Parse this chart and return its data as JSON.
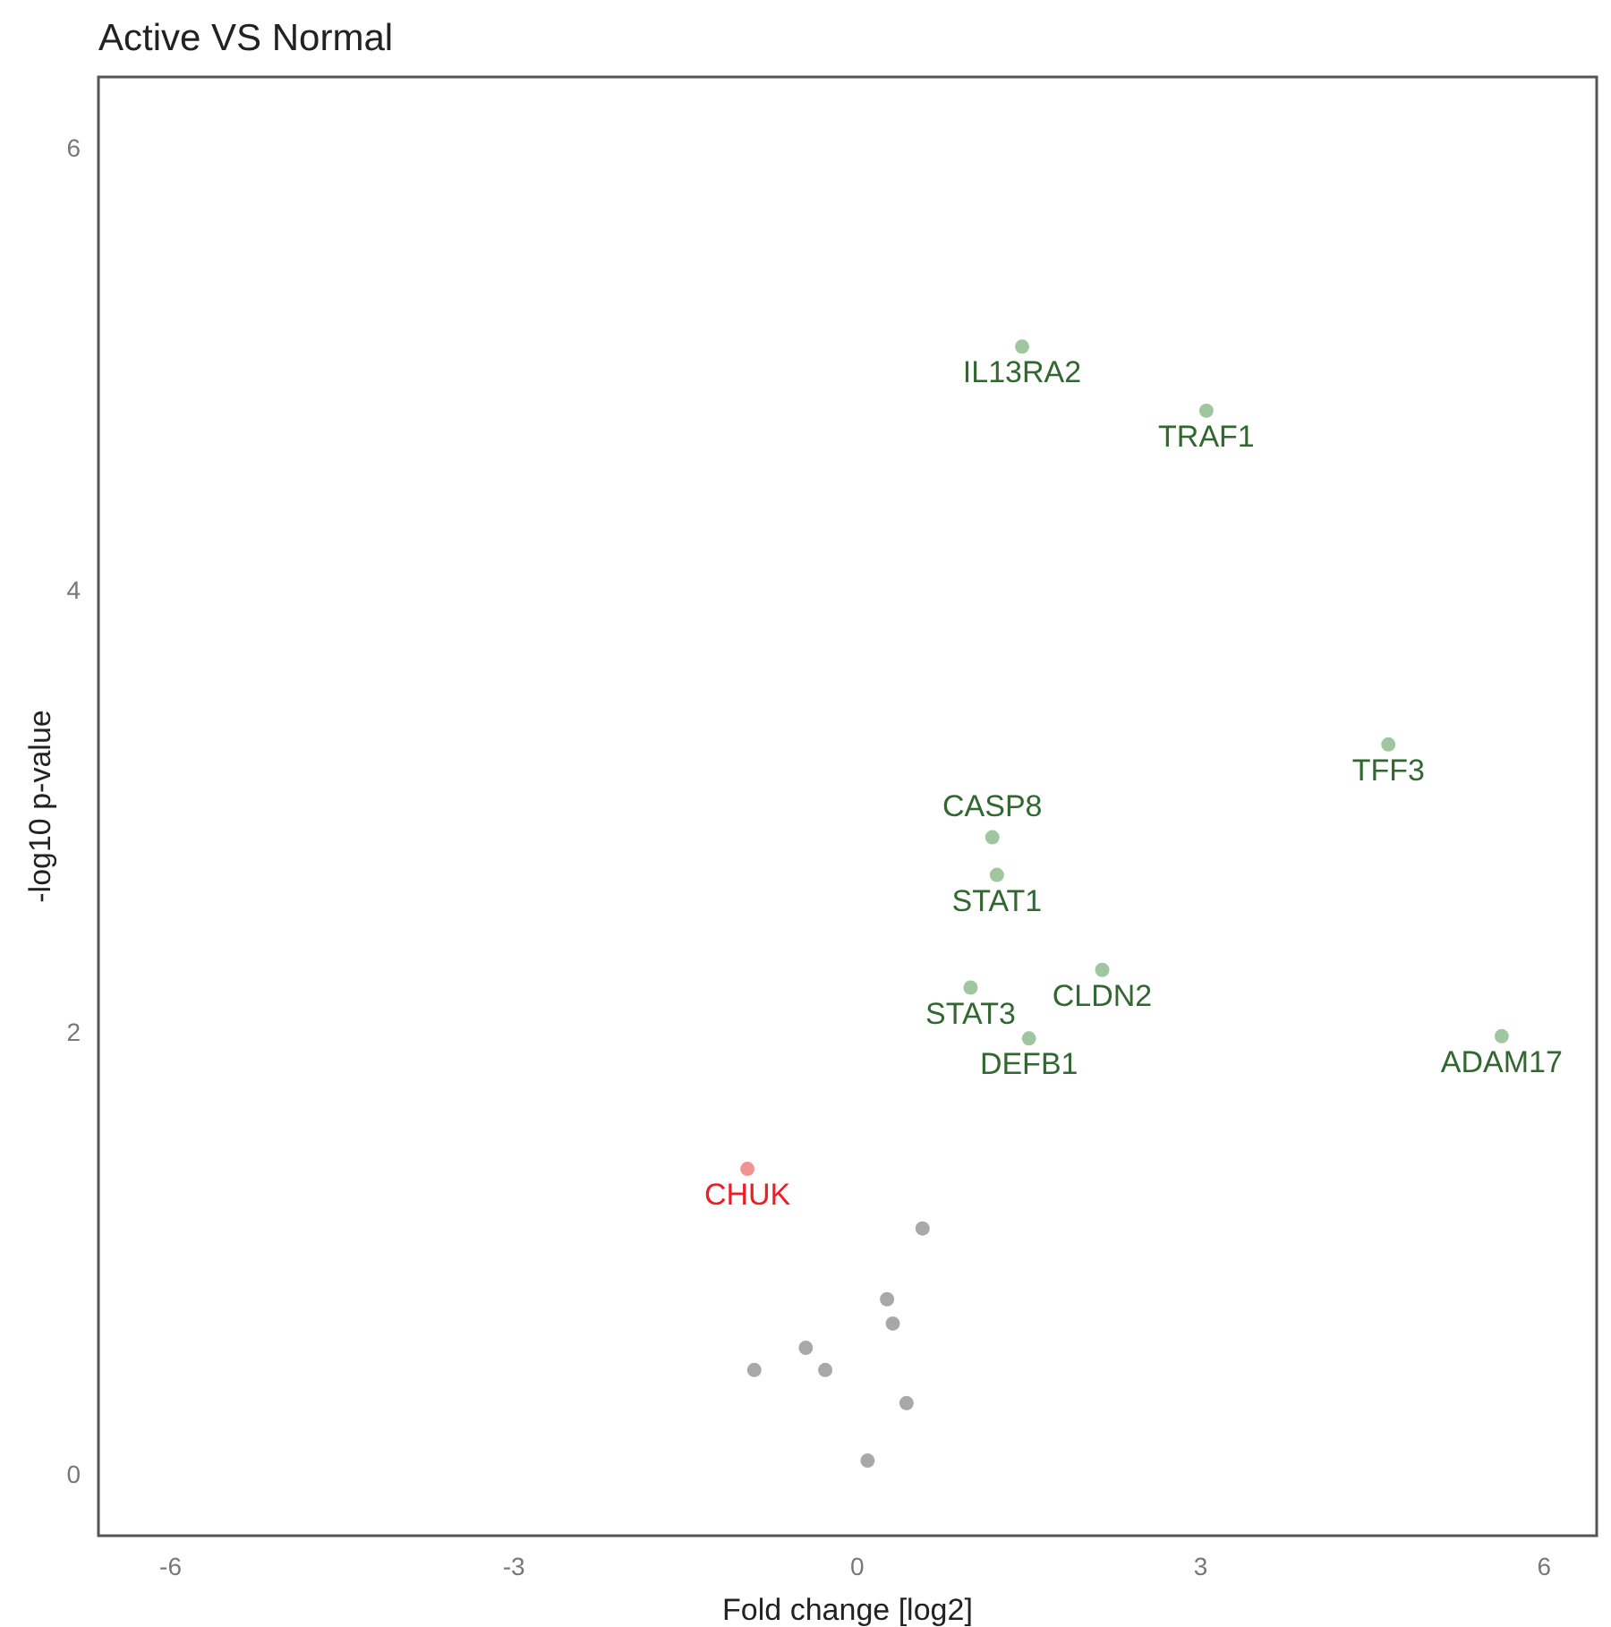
{
  "chart_data": {
    "type": "scatter",
    "title": "Active VS Normal",
    "xlabel": "Fold change [log2]",
    "ylabel": "-log10 p-value",
    "xlim": [
      -6.63,
      6.46
    ],
    "ylim": [
      -0.28,
      6.32
    ],
    "xticks": [
      -6,
      -3,
      0,
      3,
      6
    ],
    "yticks": [
      0,
      2,
      4,
      6
    ],
    "grid": false,
    "marker": "circle",
    "series": [
      {
        "color": "#8fbc8f",
        "x": [
          1.44,
          3.05,
          4.64,
          1.18,
          1.22,
          2.14,
          0.99,
          1.5,
          5.63
        ],
        "values": [
          5.1,
          4.81,
          3.3,
          2.88,
          2.71,
          2.28,
          2.2,
          1.97,
          1.98
        ]
      },
      {
        "color": "#f08080",
        "x": [
          -0.96
        ],
        "values": [
          1.38
        ]
      },
      {
        "color": "#999999",
        "x": [
          0.57,
          0.26,
          0.31,
          -0.45,
          -0.9,
          -0.28,
          0.43,
          0.09
        ],
        "values": [
          1.11,
          0.79,
          0.68,
          0.57,
          0.47,
          0.47,
          0.32,
          0.06
        ]
      }
    ],
    "annotations": [
      {
        "text": "IL13RA2",
        "x": 1.44,
        "y": 5.1
      },
      {
        "text": "TRAF1",
        "x": 3.05,
        "y": 4.81
      },
      {
        "text": "TFF3",
        "x": 4.64,
        "y": 3.3
      },
      {
        "text": "CASP8",
        "x": 1.18,
        "y": 2.88
      },
      {
        "text": "STAT1",
        "x": 1.22,
        "y": 2.71
      },
      {
        "text": "CLDN2",
        "x": 2.14,
        "y": 2.28
      },
      {
        "text": "STAT3",
        "x": 0.99,
        "y": 2.2
      },
      {
        "text": "DEFB1",
        "x": 1.5,
        "y": 1.97
      },
      {
        "text": "ADAM17",
        "x": 5.63,
        "y": 1.98
      },
      {
        "text": "CHUK",
        "x": -0.96,
        "y": 1.38
      }
    ]
  }
}
